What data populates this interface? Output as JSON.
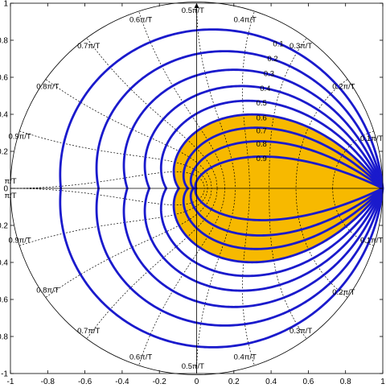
{
  "chart_data": {
    "type": "line",
    "title": "",
    "xlabel": "",
    "ylabel": "",
    "xlim": [
      -1,
      1
    ],
    "ylim": [
      -1,
      1
    ],
    "x_ticks": [
      "-1",
      "-0.8",
      "-0.6",
      "-0.4",
      "-0.2",
      "0",
      "0.2",
      "0.4",
      "0.6",
      "0.8",
      "1"
    ],
    "y_ticks": [
      "1",
      "0.8",
      "0.6",
      "0.4",
      "0.2",
      "0",
      "0.2",
      "0.4",
      "0.6",
      "0.8",
      "-1"
    ],
    "grid": false,
    "colors": {
      "contour": "#1a1acc",
      "fill": "#f7b900",
      "grid_lines": "#000000",
      "circle": "#000000"
    },
    "damping_ratios": [
      0,
      0.1,
      0.2,
      0.3,
      0.4,
      0.5,
      0.6,
      0.7,
      0.8,
      0.9
    ],
    "damping_labels": [
      {
        "text": "0.1",
        "x": 0.41,
        "y": 0.78
      },
      {
        "text": "0.2",
        "x": 0.38,
        "y": 0.7
      },
      {
        "text": "0.3",
        "x": 0.36,
        "y": 0.62
      },
      {
        "text": "0.4",
        "x": 0.34,
        "y": 0.54
      },
      {
        "text": "0.5",
        "x": 0.32,
        "y": 0.46
      },
      {
        "text": "0.6",
        "x": 0.32,
        "y": 0.38
      },
      {
        "text": "0.7",
        "x": 0.32,
        "y": 0.31
      },
      {
        "text": "0.8",
        "x": 0.32,
        "y": 0.24
      },
      {
        "text": "0.9",
        "x": 0.32,
        "y": 0.16
      }
    ],
    "natural_frequency_labels_upper": [
      {
        "text": "0.1π/T",
        "x": 0.94,
        "y": 0.27
      },
      {
        "text": "0.2π/T",
        "x": 0.79,
        "y": 0.55
      },
      {
        "text": "0.3π/T",
        "x": 0.56,
        "y": 0.77
      },
      {
        "text": "0.4π/T",
        "x": 0.26,
        "y": 0.91
      },
      {
        "text": "0.5π/T",
        "x": -0.02,
        "y": 0.96
      },
      {
        "text": "0.6π/T",
        "x": -0.3,
        "y": 0.91
      },
      {
        "text": "0.7π/T",
        "x": -0.58,
        "y": 0.77
      },
      {
        "text": "0.8π/T",
        "x": -0.8,
        "y": 0.55
      },
      {
        "text": "0.9π/T",
        "x": -0.95,
        "y": 0.28
      },
      {
        "text": "π/T",
        "x": -1.0,
        "y": 0.04
      }
    ],
    "natural_frequency_labels_lower": [
      {
        "text": "0.1π/T",
        "x": 0.94,
        "y": -0.28
      },
      {
        "text": "0.2π/T",
        "x": 0.79,
        "y": -0.56
      },
      {
        "text": "0.3π/T",
        "x": 0.56,
        "y": -0.77
      },
      {
        "text": "0.4π/T",
        "x": 0.26,
        "y": -0.91
      },
      {
        "text": "0.5π/T",
        "x": -0.02,
        "y": -0.96
      },
      {
        "text": "0.6π/T",
        "x": -0.3,
        "y": -0.91
      },
      {
        "text": "0.7π/T",
        "x": -0.58,
        "y": -0.77
      },
      {
        "text": "0.8π/T",
        "x": -0.8,
        "y": -0.55
      },
      {
        "text": "0.9π/T",
        "x": -0.95,
        "y": -0.28
      },
      {
        "text": "π/T",
        "x": -1.0,
        "y": -0.04
      }
    ],
    "natural_frequencies": [
      0.1,
      0.2,
      0.3,
      0.4,
      0.5,
      0.6,
      0.7,
      0.8,
      0.9,
      1.0
    ]
  }
}
